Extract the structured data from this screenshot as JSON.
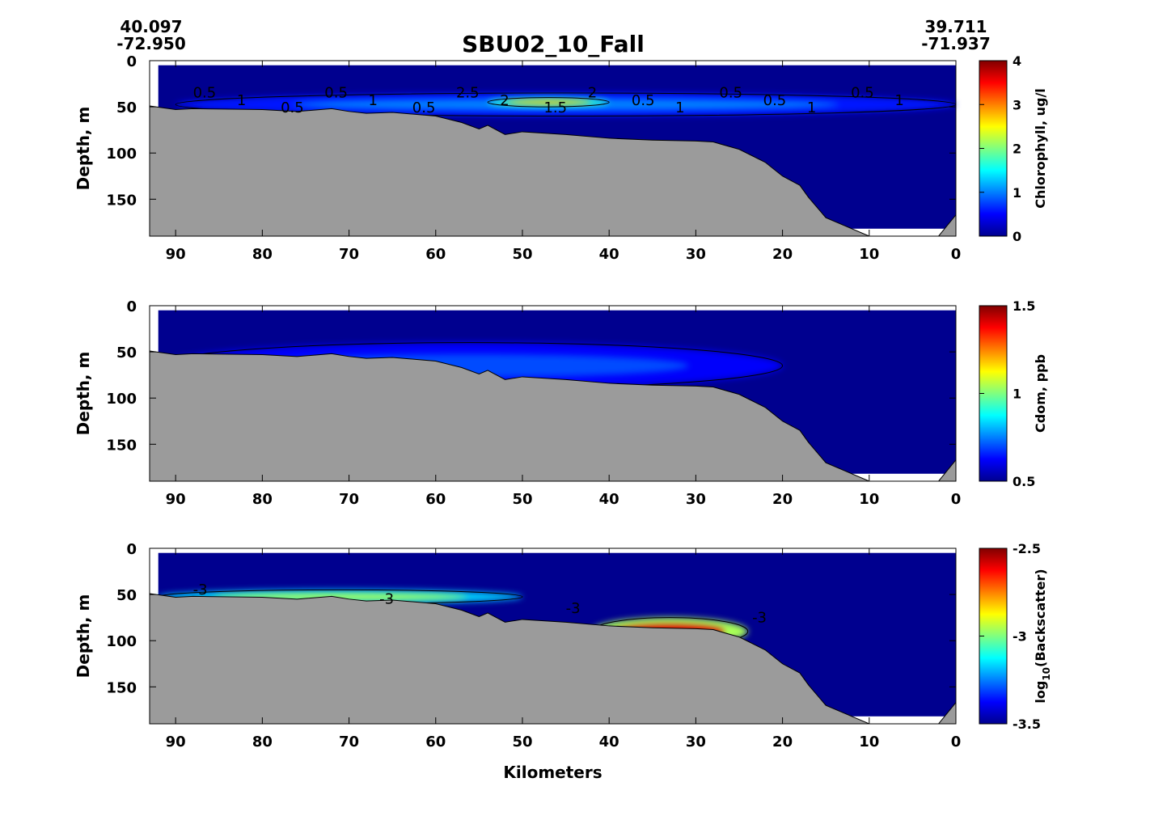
{
  "title": "SBU02_10_Fall",
  "start_coord": {
    "lat": "40.097",
    "lon": "-72.950"
  },
  "end_coord": {
    "lat": "39.711",
    "lon": "-71.937"
  },
  "colors": {
    "land": "#9b9b9b",
    "background_water": "#00008f"
  },
  "chart_data": [
    {
      "type": "heatmap",
      "subtype": "contour section",
      "ylabel": "Depth, m",
      "xlabel": "",
      "xlim": [
        93,
        0
      ],
      "ylim": [
        190,
        0
      ],
      "xticks": [
        "90",
        "80",
        "70",
        "60",
        "50",
        "40",
        "30",
        "20",
        "10",
        "0"
      ],
      "yticks": [
        "0",
        "50",
        "100",
        "150"
      ],
      "colorbar": {
        "label": "Chlorophyll, ug/l",
        "range": [
          0,
          4
        ],
        "ticks": [
          "0",
          "1",
          "2",
          "3",
          "4"
        ],
        "colormap": "jet"
      },
      "contour_labels": [
        "0.5",
        "1",
        "0.5",
        "0.5",
        "1",
        "0.5",
        "2.5",
        "2",
        "1.5",
        "2",
        "0.5",
        "1",
        "0.5",
        "0.5",
        "1",
        "0.5",
        "1"
      ],
      "features": [
        {
          "x_range": [
            90,
            0
          ],
          "depth_range": [
            35,
            60
          ],
          "value": 1,
          "note": "subsurface layer"
        },
        {
          "x_range": [
            54,
            40
          ],
          "depth_range": [
            40,
            50
          ],
          "value": 2.8
        }
      ]
    },
    {
      "type": "heatmap",
      "subtype": "contour section",
      "ylabel": "Depth, m",
      "xlabel": "",
      "xlim": [
        93,
        0
      ],
      "ylim": [
        190,
        0
      ],
      "xticks": [
        "90",
        "80",
        "70",
        "60",
        "50",
        "40",
        "30",
        "20",
        "10",
        "0"
      ],
      "yticks": [
        "0",
        "50",
        "100",
        "150"
      ],
      "colorbar": {
        "label": "Cdom, ppb",
        "range": [
          0.5,
          1.5
        ],
        "ticks": [
          "0.5",
          "1",
          "1.5"
        ],
        "colormap": "jet"
      },
      "features": [
        {
          "x_range": [
            92,
            20
          ],
          "depth_range": [
            40,
            90
          ],
          "value": 0.7,
          "note": "near-bottom layer"
        }
      ]
    },
    {
      "type": "heatmap",
      "subtype": "contour section",
      "ylabel": "Depth, m",
      "xlabel": "Kilometers",
      "xlim": [
        93,
        0
      ],
      "ylim": [
        190,
        0
      ],
      "xticks": [
        "90",
        "80",
        "70",
        "60",
        "50",
        "40",
        "30",
        "20",
        "10",
        "0"
      ],
      "yticks": [
        "0",
        "50",
        "100",
        "150"
      ],
      "colorbar": {
        "label": "log10(Backscatter)",
        "label_base": "log",
        "label_sub": "10",
        "label_rest": "(Backscatter)",
        "range": [
          -3.5,
          -2.5
        ],
        "ticks": [
          "-3.5",
          "-3",
          "-2.5"
        ],
        "colormap": "jet"
      },
      "contour_labels": [
        "-3",
        "-3",
        "-3",
        "-3"
      ],
      "features": [
        {
          "x_range": [
            92,
            50
          ],
          "depth_range": [
            45,
            60
          ],
          "value": -2.95
        },
        {
          "x_range": [
            42,
            24
          ],
          "depth_range": [
            75,
            105
          ],
          "value": -2.6
        }
      ]
    }
  ],
  "bathymetry_km_depth": [
    [
      93,
      49
    ],
    [
      90,
      53
    ],
    [
      88,
      52
    ],
    [
      80,
      53
    ],
    [
      76,
      55
    ],
    [
      72,
      52
    ],
    [
      70,
      55
    ],
    [
      68,
      57
    ],
    [
      65,
      56
    ],
    [
      60,
      60
    ],
    [
      57,
      67
    ],
    [
      55,
      74
    ],
    [
      54,
      70
    ],
    [
      52,
      80
    ],
    [
      50,
      77
    ],
    [
      45,
      80
    ],
    [
      40,
      84
    ],
    [
      35,
      86
    ],
    [
      30,
      87
    ],
    [
      28,
      88
    ],
    [
      25,
      96
    ],
    [
      22,
      110
    ],
    [
      20,
      125
    ],
    [
      18,
      135
    ],
    [
      17,
      148
    ],
    [
      15,
      170
    ],
    [
      10,
      190
    ],
    [
      2,
      190
    ],
    [
      0,
      167
    ]
  ]
}
